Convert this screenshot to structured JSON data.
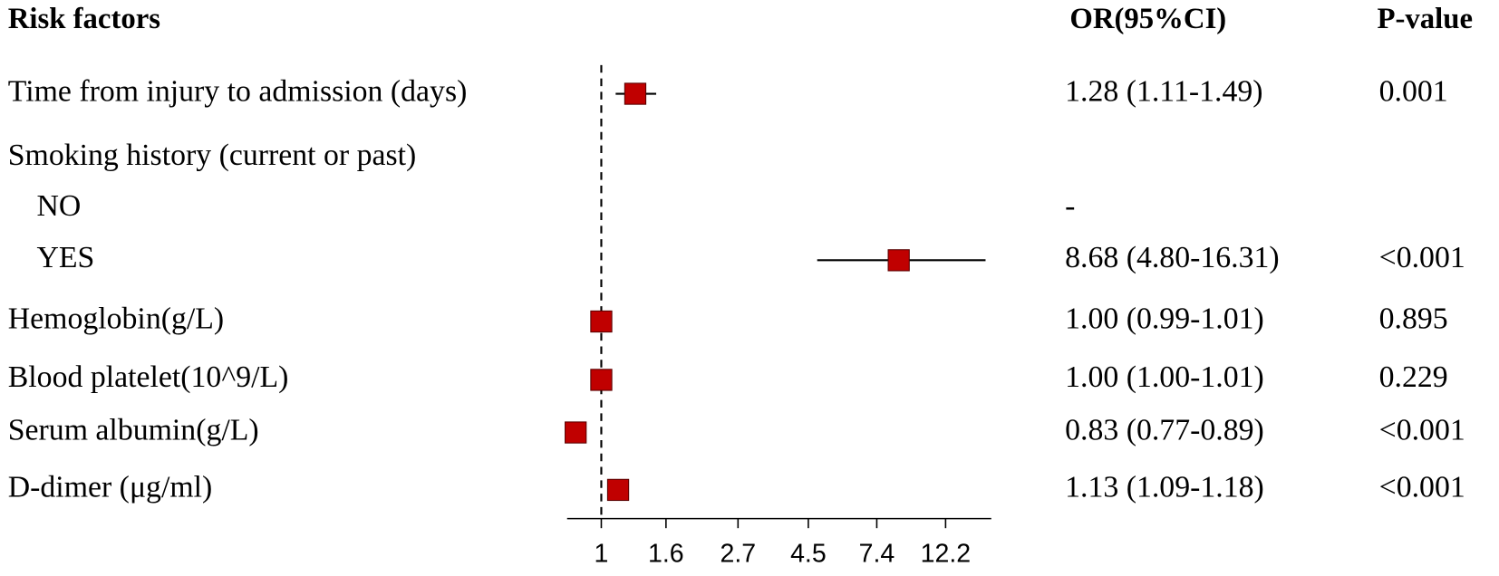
{
  "chart_data": {
    "type": "forest",
    "columns": [
      "Risk factors",
      "OR(95%CI)",
      "P-value"
    ],
    "log_scale": true,
    "xlim": [
      0.78,
      17
    ],
    "xticks": [
      1,
      1.6,
      2.7,
      4.5,
      7.4,
      12.2
    ],
    "ref_line": 1,
    "color": "#c00000",
    "rows": [
      {
        "label": "Time from injury to admission (days)",
        "level": 0,
        "or": 1.28,
        "lower": 1.11,
        "upper": 1.49,
        "or_text": "1.28 (1.11-1.49)",
        "p": "0.001"
      },
      {
        "label": "Smoking history (current or past)",
        "level": 0,
        "or": null,
        "lower": null,
        "upper": null,
        "or_text": null,
        "p": null
      },
      {
        "label": "NO",
        "level": 1,
        "or": null,
        "lower": null,
        "upper": null,
        "or_text": "-",
        "p": null
      },
      {
        "label": "YES",
        "level": 1,
        "or": 8.68,
        "lower": 4.8,
        "upper": 16.31,
        "or_text": "8.68 (4.80-16.31)",
        "p": "<0.001"
      },
      {
        "label": "Hemoglobin(g/L)",
        "level": 0,
        "or": 1.0,
        "lower": 0.99,
        "upper": 1.01,
        "or_text": "1.00 (0.99-1.01)",
        "p": "0.895"
      },
      {
        "label": "Blood platelet(10^9/L)",
        "level": 0,
        "or": 1.0,
        "lower": 1.0,
        "upper": 1.01,
        "or_text": "1.00 (1.00-1.01)",
        "p": "0.229"
      },
      {
        "label": "Serum albumin(g/L)",
        "level": 0,
        "or": 0.83,
        "lower": 0.77,
        "upper": 0.89,
        "or_text": "0.83 (0.77-0.89)",
        "p": "<0.001"
      },
      {
        "label": "D-dimer (μg/ml)",
        "level": 0,
        "or": 1.13,
        "lower": 1.09,
        "upper": 1.18,
        "or_text": "1.13 (1.09-1.18)",
        "p": "<0.001"
      }
    ]
  }
}
